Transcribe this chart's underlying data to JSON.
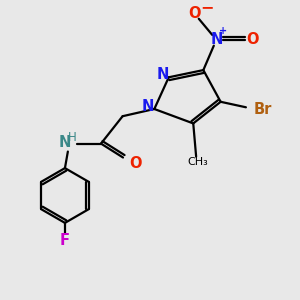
{
  "background_color": "#e8e8e8",
  "figsize": [
    3.0,
    3.0
  ],
  "dpi": 100,
  "xlim": [
    -3.5,
    5.5
  ],
  "ylim": [
    -1.5,
    8.5
  ],
  "bond_color": "#000000",
  "lw": 1.6,
  "colors": {
    "N": "#1a1aee",
    "O": "#ee2200",
    "Br": "#b06010",
    "F": "#cc00cc",
    "NH": "#3a8888",
    "C": "#000000"
  }
}
